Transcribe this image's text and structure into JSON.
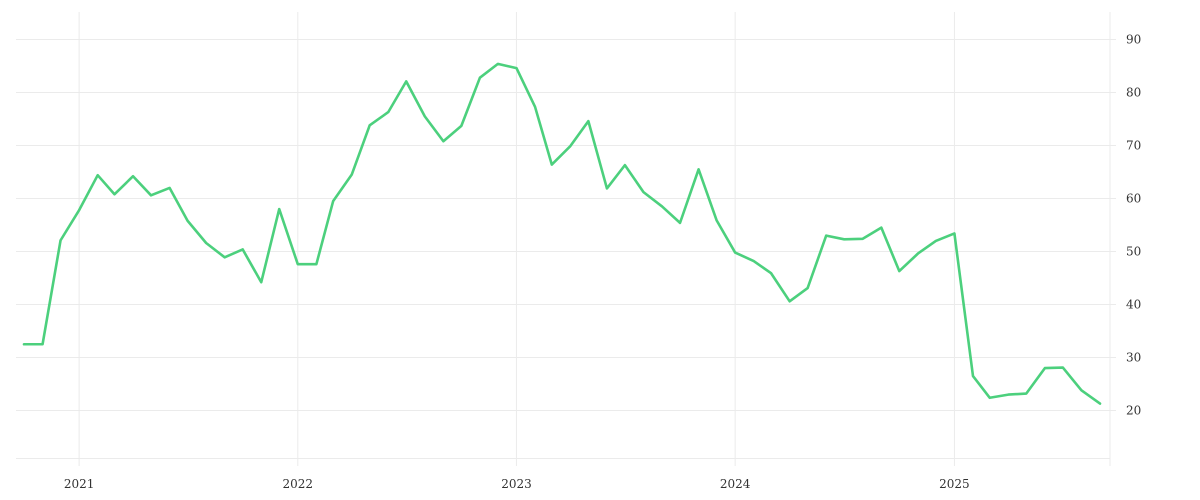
{
  "chart_data": {
    "type": "line",
    "title": "",
    "xlabel": "",
    "ylabel": "",
    "xlim": [
      "2020-10-01",
      "2025-09-01"
    ],
    "ylim": [
      10,
      95
    ],
    "yticks": [
      20,
      30,
      40,
      50,
      60,
      70,
      80,
      90
    ],
    "xticks": [
      "2021-01-01",
      "2022-01-01",
      "2023-01-01",
      "2024-01-01",
      "2025-01-01"
    ],
    "xtick_labels": [
      "2021",
      "2022",
      "2023",
      "2024",
      "2025"
    ],
    "grid": true,
    "y_axis_side": "right",
    "line_color": "#4cd07d",
    "grid_color": "#ebebeb",
    "series": [
      {
        "x": [
          "2020-10-01",
          "2020-11-01",
          "2020-12-01",
          "2021-01-01",
          "2021-02-01",
          "2021-03-01",
          "2021-04-01",
          "2021-05-01",
          "2021-06-01",
          "2021-07-01",
          "2021-08-01",
          "2021-09-01",
          "2021-10-01",
          "2021-11-01",
          "2021-12-01",
          "2022-01-01",
          "2022-02-01",
          "2022-03-01",
          "2022-04-01",
          "2022-05-01",
          "2022-06-01",
          "2022-07-01",
          "2022-08-01",
          "2022-09-01",
          "2022-10-01",
          "2022-11-01",
          "2022-12-01",
          "2023-01-01",
          "2023-02-01",
          "2023-03-01",
          "2023-04-01",
          "2023-05-01",
          "2023-06-01",
          "2023-07-01",
          "2023-08-01",
          "2023-09-01",
          "2023-10-01",
          "2023-11-01",
          "2023-12-01",
          "2024-01-01",
          "2024-02-01",
          "2024-03-01",
          "2024-04-01",
          "2024-05-01",
          "2024-06-01",
          "2024-07-01",
          "2024-08-01",
          "2024-09-01",
          "2024-10-01",
          "2024-11-01",
          "2024-12-01",
          "2025-01-01",
          "2025-02-01",
          "2025-03-01",
          "2025-04-01",
          "2025-05-01",
          "2025-06-01",
          "2025-07-01",
          "2025-08-01",
          "2025-09-01"
        ],
        "values": [
          32.5,
          32.5,
          52.1,
          57.8,
          64.4,
          60.8,
          64.2,
          60.6,
          62.0,
          55.8,
          51.6,
          48.9,
          50.4,
          44.2,
          58.0,
          47.6,
          47.6,
          59.5,
          64.5,
          73.8,
          76.3,
          82.1,
          75.5,
          70.8,
          73.7,
          82.8,
          85.4,
          84.6,
          77.3,
          66.4,
          69.9,
          74.6,
          61.9,
          66.3,
          61.2,
          58.5,
          55.4,
          65.5,
          55.9,
          49.8,
          48.2,
          45.9,
          40.6,
          43.1,
          53.0,
          52.3,
          52.4,
          54.5,
          46.3,
          49.6,
          52.0,
          53.4,
          26.5,
          22.4,
          23.0,
          23.2,
          28.0,
          28.1,
          23.8,
          21.3
        ]
      }
    ]
  }
}
